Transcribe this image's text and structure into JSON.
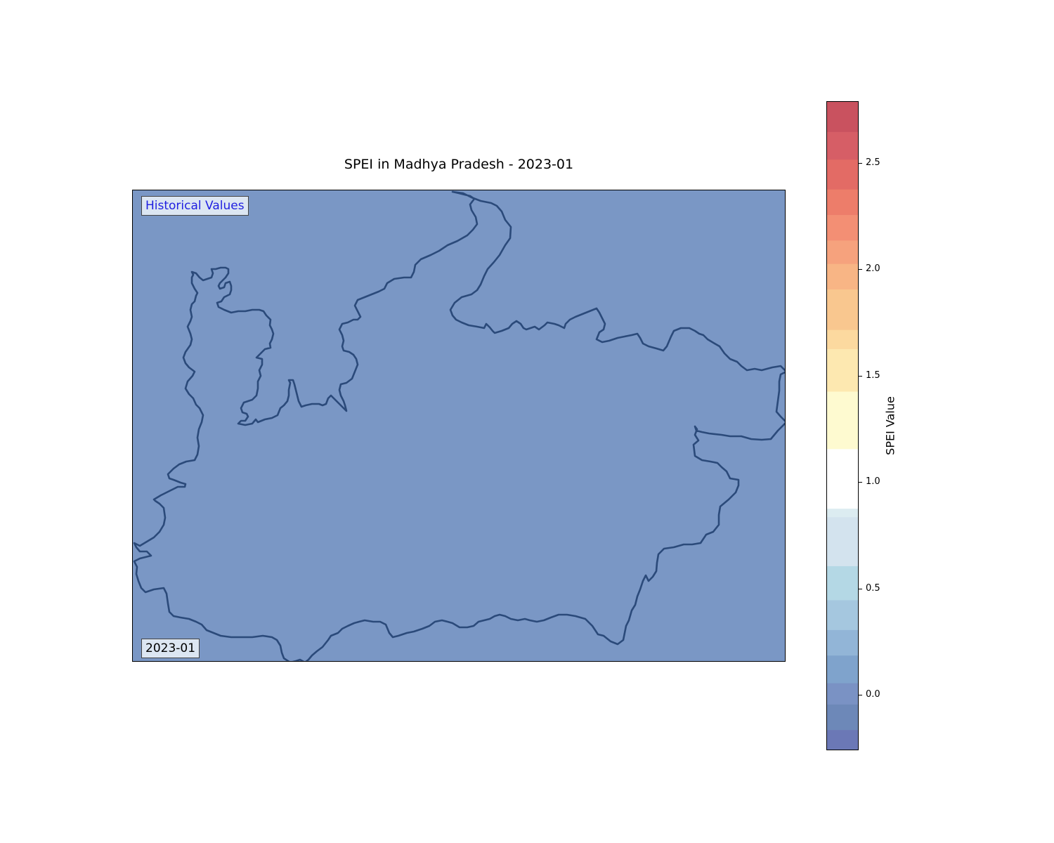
{
  "title": "SPEI in Madhya Pradesh - 2023-01",
  "map": {
    "mode_label": "Historical Values",
    "date_label": "2023-01",
    "fill_color": "#7a97c5",
    "boundary_color": "#2b4a7a",
    "region": "Madhya Pradesh"
  },
  "colorbar": {
    "label": "SPEI Value",
    "vmin": -0.26,
    "vmax": 2.79,
    "ticks": [
      {
        "value": 0.0,
        "label": "0.0"
      },
      {
        "value": 0.5,
        "label": "0.5"
      },
      {
        "value": 1.0,
        "label": "1.0"
      },
      {
        "value": 1.5,
        "label": "1.5"
      },
      {
        "value": 2.0,
        "label": "2.0"
      },
      {
        "value": 2.5,
        "label": "2.5"
      }
    ],
    "bands": [
      {
        "from": -0.26,
        "to": -0.16,
        "color": "#6b78b6"
      },
      {
        "from": -0.16,
        "to": -0.04,
        "color": "#6d88b8"
      },
      {
        "from": -0.04,
        "to": 0.06,
        "color": "#7a92c4"
      },
      {
        "from": 0.06,
        "to": 0.19,
        "color": "#7fa3cc"
      },
      {
        "from": 0.19,
        "to": 0.31,
        "color": "#92b5d7"
      },
      {
        "from": 0.31,
        "to": 0.45,
        "color": "#a5c7df"
      },
      {
        "from": 0.45,
        "to": 0.61,
        "color": "#b4d8e5"
      },
      {
        "from": 0.61,
        "to": 0.84,
        "color": "#d3e3ee"
      },
      {
        "from": 0.84,
        "to": 0.88,
        "color": "#dcecf1"
      },
      {
        "from": 0.88,
        "to": 1.16,
        "color": "#ffffff"
      },
      {
        "from": 1.16,
        "to": 1.43,
        "color": "#fefad0"
      },
      {
        "from": 1.43,
        "to": 1.63,
        "color": "#fde8b0"
      },
      {
        "from": 1.63,
        "to": 1.72,
        "color": "#fcd99f"
      },
      {
        "from": 1.72,
        "to": 1.91,
        "color": "#f9c78f"
      },
      {
        "from": 1.91,
        "to": 2.03,
        "color": "#f8b585"
      },
      {
        "from": 2.03,
        "to": 2.14,
        "color": "#f6a27d"
      },
      {
        "from": 2.14,
        "to": 2.26,
        "color": "#f38f74"
      },
      {
        "from": 2.26,
        "to": 2.38,
        "color": "#ed7d6a"
      },
      {
        "from": 2.38,
        "to": 2.52,
        "color": "#e36b65"
      },
      {
        "from": 2.52,
        "to": 2.65,
        "color": "#d65e66"
      },
      {
        "from": 2.65,
        "to": 2.79,
        "color": "#c9525f"
      }
    ]
  }
}
